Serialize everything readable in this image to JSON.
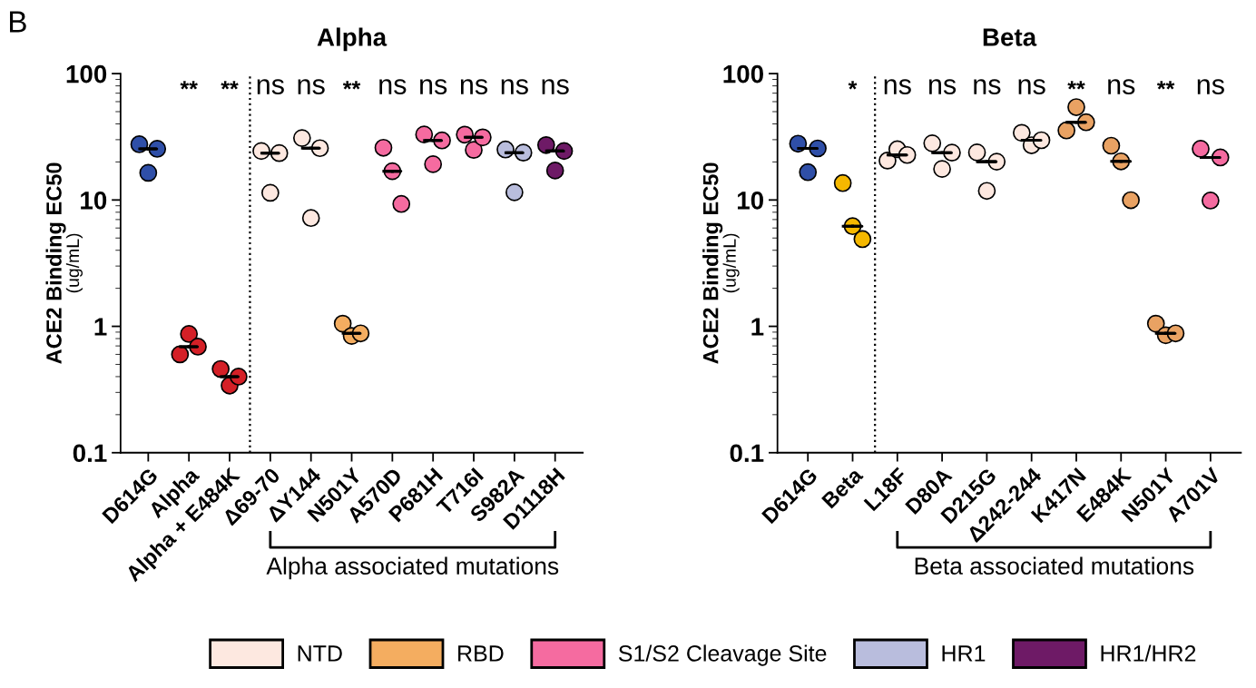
{
  "chart_data": [
    {
      "type": "scatter",
      "title": "Alpha",
      "ylabel": "ACE2 Binding EC50\n(ug/mL)",
      "log": true,
      "ylim": [
        0.1,
        100
      ],
      "yticks": [
        0.1,
        1,
        10,
        100
      ],
      "legend": "bottom",
      "marker": "circle",
      "categories": [
        "D614G",
        "Alpha",
        "Alpha + E484K",
        "Δ69-70",
        "ΔY144",
        "N501Y",
        "A570D",
        "P681H",
        "T716I",
        "S982A",
        "D1118H"
      ],
      "series": [
        {
          "color": "#2f4fa8",
          "x": [
            "D614G",
            "D614G",
            "D614G"
          ],
          "values": [
            27.6,
            16.4,
            25.4
          ]
        },
        {
          "color": "#d42027",
          "x": [
            "Alpha",
            "Alpha",
            "Alpha",
            "Alpha + E484K",
            "Alpha + E484K",
            "Alpha + E484K"
          ],
          "values": [
            0.6,
            0.87,
            0.69,
            0.46,
            0.34,
            0.4
          ]
        },
        {
          "name": "NTD",
          "color": "#fde8e0",
          "x": [
            "Δ69-70",
            "Δ69-70",
            "Δ69-70",
            "ΔY144",
            "ΔY144",
            "ΔY144"
          ],
          "values": [
            24.4,
            11.4,
            23.5,
            30.9,
            7.2,
            25.7
          ]
        },
        {
          "name": "RBD",
          "color": "#f4ad60",
          "x": [
            "N501Y",
            "N501Y",
            "N501Y"
          ],
          "values": [
            1.05,
            0.84,
            0.88
          ]
        },
        {
          "name": "S1/S2 Cleavage Site",
          "color": "#f56ba0",
          "x": [
            "A570D",
            "A570D",
            "A570D",
            "P681H",
            "P681H",
            "P681H",
            "T716I",
            "T716I",
            "T716I"
          ],
          "values": [
            25.9,
            16.9,
            9.3,
            33.0,
            19.2,
            29.6,
            32.9,
            24.9,
            31.3
          ]
        },
        {
          "name": "HR1",
          "color": "#b9bddd",
          "x": [
            "S982A",
            "S982A",
            "S982A"
          ],
          "values": [
            25.1,
            11.5,
            23.7
          ]
        },
        {
          "name": "HR1/HR2",
          "color": "#6e1a66",
          "x": [
            "D1118H",
            "D1118H",
            "D1118H"
          ],
          "values": [
            27.2,
            17.1,
            24.4
          ]
        },
        {
          "type": "box",
          "color": "#000000",
          "boxes": [
            {
              "low": 25.4,
              "q1": 25.4,
              "median": 25.4,
              "q3": 25.4,
              "high": 25.4
            },
            {
              "low": 0.69,
              "q1": 0.69,
              "median": 0.69,
              "q3": 0.69,
              "high": 0.69
            },
            {
              "low": 0.4,
              "q1": 0.4,
              "median": 0.4,
              "q3": 0.4,
              "high": 0.4
            },
            {
              "low": 23.5,
              "q1": 23.5,
              "median": 23.5,
              "q3": 23.5,
              "high": 23.5
            },
            {
              "low": 25.7,
              "q1": 25.7,
              "median": 25.7,
              "q3": 25.7,
              "high": 25.7
            },
            {
              "low": 0.88,
              "q1": 0.88,
              "median": 0.88,
              "q3": 0.88,
              "high": 0.88
            },
            {
              "low": 16.9,
              "q1": 16.9,
              "median": 16.9,
              "q3": 16.9,
              "high": 16.9
            },
            {
              "low": 29.6,
              "q1": 29.6,
              "median": 29.6,
              "q3": 29.6,
              "high": 29.6
            },
            {
              "low": 31.3,
              "q1": 31.3,
              "median": 31.3,
              "q3": 31.3,
              "high": 31.3
            },
            {
              "low": 23.7,
              "q1": 23.7,
              "median": 23.7,
              "q3": 23.7,
              "high": 23.7
            },
            {
              "low": 24.4,
              "q1": 24.4,
              "median": 24.4,
              "q3": 24.4,
              "high": 24.4
            }
          ]
        }
      ],
      "annotations": [
        "B",
        "Alpha associated mutations",
        "**",
        "**",
        "ns",
        "ns",
        "**",
        "ns",
        "ns",
        "ns",
        "ns",
        "ns"
      ]
    },
    {
      "type": "scatter",
      "title": "Beta",
      "ylabel": "ACE2 Binding EC50\n(ug/mL)",
      "log": true,
      "ylim": [
        0.1,
        100
      ],
      "yticks": [
        0.1,
        1,
        10,
        100
      ],
      "marker": "circle",
      "categories": [
        "D614G",
        "Beta",
        "L18F",
        "D80A",
        "D215G",
        "Δ242-244",
        "K417N",
        "E484K",
        "N501Y",
        "A701V"
      ],
      "series": [
        {
          "color": "#2f4fa8",
          "x": [
            "D614G",
            "D614G",
            "D614G"
          ],
          "values": [
            27.9,
            16.6,
            25.6
          ]
        },
        {
          "color": "#f5b800",
          "x": [
            "Beta",
            "Beta",
            "Beta"
          ],
          "values": [
            13.6,
            6.2,
            4.9
          ]
        },
        {
          "color": "#fde8e0",
          "x": [
            "L18F",
            "L18F",
            "L18F",
            "D80A",
            "D80A",
            "D80A",
            "D215G",
            "D215G",
            "D215G",
            "Δ242-244",
            "Δ242-244",
            "Δ242-244"
          ],
          "values": [
            20.5,
            25.2,
            22.7,
            28.1,
            17.6,
            23.7,
            23.8,
            11.8,
            20.1,
            34.0,
            27.1,
            29.7
          ]
        },
        {
          "color": "#e9a263",
          "x": [
            "K417N",
            "K417N",
            "K417N",
            "E484K",
            "E484K",
            "E484K",
            "N501Y",
            "N501Y",
            "N501Y"
          ],
          "values": [
            35.5,
            54.3,
            41.2,
            26.9,
            20.2,
            9.96,
            1.05,
            0.85,
            0.88
          ]
        },
        {
          "color": "#f56ba0",
          "x": [
            "A701V",
            "A701V",
            "A701V"
          ],
          "values": [
            25.4,
            9.9,
            21.7
          ]
        },
        {
          "type": "box",
          "color": "#000000",
          "boxes": [
            {
              "low": 25.6,
              "q1": 25.6,
              "median": 25.6,
              "q3": 25.6,
              "high": 25.6
            },
            {
              "low": 6.2,
              "q1": 6.2,
              "median": 6.2,
              "q3": 6.2,
              "high": 6.2
            },
            {
              "low": 22.7,
              "q1": 22.7,
              "median": 22.7,
              "q3": 22.7,
              "high": 22.7
            },
            {
              "low": 23.7,
              "q1": 23.7,
              "median": 23.7,
              "q3": 23.7,
              "high": 23.7
            },
            {
              "low": 20.1,
              "q1": 20.1,
              "median": 20.1,
              "q3": 20.1,
              "high": 20.1
            },
            {
              "low": 29.7,
              "q1": 29.7,
              "median": 29.7,
              "q3": 29.7,
              "high": 29.7
            },
            {
              "low": 41.2,
              "q1": 41.2,
              "median": 41.2,
              "q3": 41.2,
              "high": 41.2
            },
            {
              "low": 20.2,
              "q1": 20.2,
              "median": 20.2,
              "q3": 20.2,
              "high": 20.2
            },
            {
              "low": 0.88,
              "q1": 0.88,
              "median": 0.88,
              "q3": 0.88,
              "high": 0.88
            },
            {
              "low": 21.7,
              "q1": 21.7,
              "median": 21.7,
              "q3": 21.7,
              "high": 21.7
            }
          ]
        }
      ],
      "annotations": [
        "Beta associated mutations",
        "*",
        "ns",
        "ns",
        "ns",
        "ns",
        "**",
        "ns",
        "**",
        "ns"
      ]
    }
  ]
}
